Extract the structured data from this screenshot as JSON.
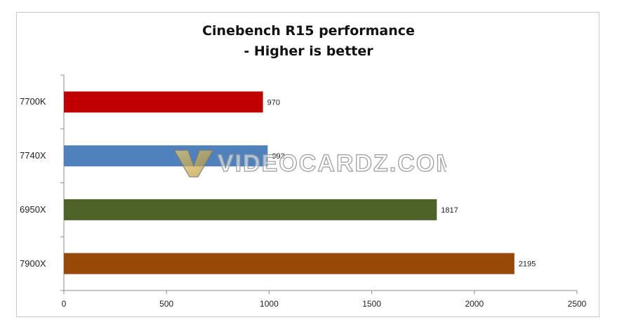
{
  "chart_data": {
    "type": "bar",
    "orientation": "horizontal",
    "title": "Cinebench R15 performance",
    "subtitle": "- Higher is better",
    "categories": [
      "7700K",
      "7740X",
      "6950X",
      "7900X"
    ],
    "values": [
      970,
      993,
      1817,
      2195
    ],
    "data_labels": [
      "970",
      "993",
      "1817",
      "2195"
    ],
    "bar_colors": [
      "#c00000",
      "#4f81bd",
      "#4f6228",
      "#984807"
    ],
    "xlim": [
      0,
      2500
    ],
    "xticks": [
      0,
      500,
      1000,
      1500,
      2000,
      2500
    ],
    "xtick_labels": [
      "0",
      "500",
      "1000",
      "1500",
      "2000",
      "2500"
    ],
    "grid": false,
    "legend": "none"
  },
  "watermark": {
    "text": "VIDEOCARDZ.COM"
  }
}
